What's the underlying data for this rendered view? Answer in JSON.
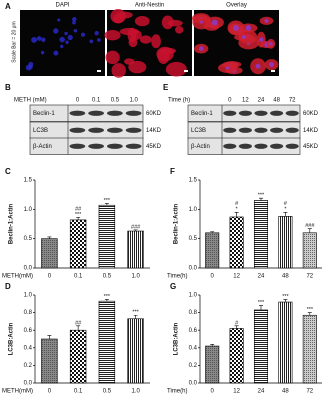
{
  "panel_a": {
    "label": "A",
    "scale_bar": "Scale Bar = 20 μm",
    "images": [
      "DAPI",
      "Anti-Nestin",
      "Overlay"
    ]
  },
  "panel_b": {
    "label": "B",
    "condition": "METH (mM)",
    "lanes": [
      "0",
      "0.1",
      "0.5",
      "1.0"
    ],
    "proteins": [
      "Beclin-1",
      "LC3B",
      "β-Actin"
    ],
    "sizes": [
      "60KD",
      "14KD",
      "45KD"
    ]
  },
  "panel_e": {
    "label": "E",
    "condition": "Time (h)",
    "lanes": [
      "0",
      "12",
      "24",
      "48",
      "72"
    ],
    "proteins": [
      "Beclin-1",
      "LC3B",
      "β-Actin"
    ],
    "sizes": [
      "60KD",
      "14KD",
      "45KD"
    ]
  },
  "chart_data": [
    {
      "type": "bar",
      "panel": "C",
      "y_label": "Beclin-1:Actin",
      "x_label": "METH(mM)",
      "categories": [
        "0",
        "0.1",
        "0.5",
        "1.0"
      ],
      "values": [
        0.5,
        0.82,
        1.07,
        0.63
      ],
      "errors": [
        0.03,
        0.04,
        0.03,
        0.02
      ],
      "annotations": [
        [],
        [
          "##",
          "***"
        ],
        [
          "***"
        ],
        [
          "###"
        ]
      ],
      "ylim": [
        0,
        1.5
      ],
      "yticks": [
        {
          "value": 0,
          "label": "0.0"
        },
        0.5,
        {
          "value": 1,
          "label": "1.0"
        },
        1.5
      ]
    },
    {
      "type": "bar",
      "panel": "D",
      "y_label": "LC3B:Actin",
      "x_label": "METH(mM)",
      "categories": [
        "0",
        "0.1",
        "0.5",
        "1.0"
      ],
      "values": [
        0.5,
        0.6,
        0.93,
        0.73
      ],
      "errors": [
        0.04,
        0.05,
        0.02,
        0.04
      ],
      "annotations": [
        [],
        [
          "##"
        ],
        [
          "***"
        ],
        [
          "***"
        ]
      ],
      "ylim": [
        0,
        1.0
      ],
      "yticks": [
        {
          "value": 0,
          "label": "0.0"
        },
        0.2,
        0.4,
        0.6,
        0.8,
        {
          "value": 1,
          "label": "1.0"
        }
      ]
    },
    {
      "type": "bar",
      "panel": "F",
      "y_label": "Beclin-1:Actin",
      "x_label": "Time(h)",
      "categories": [
        "0",
        "12",
        "24",
        "48",
        "72"
      ],
      "values": [
        0.6,
        0.87,
        1.15,
        0.88,
        0.6
      ],
      "errors": [
        0.02,
        0.08,
        0.04,
        0.07,
        0.07
      ],
      "annotations": [
        [],
        [
          "#",
          "*"
        ],
        [
          "***"
        ],
        [
          "#",
          "*"
        ],
        [
          "###"
        ]
      ],
      "ylim": [
        0,
        1.5
      ],
      "yticks": [
        {
          "value": 0,
          "label": "0.0"
        },
        0.5,
        {
          "value": 1,
          "label": "1.0"
        },
        1.5
      ]
    },
    {
      "type": "bar",
      "panel": "G",
      "y_label": "LC3B:Actin",
      "x_label": "Time(h)",
      "categories": [
        "0",
        "12",
        "24",
        "48",
        "72"
      ],
      "values": [
        0.42,
        0.62,
        0.83,
        0.92,
        0.77
      ],
      "errors": [
        0.02,
        0.03,
        0.05,
        0.03,
        0.03
      ],
      "annotations": [
        [],
        [
          "#"
        ],
        [
          "***"
        ],
        [
          "***"
        ],
        [
          "***"
        ]
      ],
      "ylim": [
        0,
        1.0
      ],
      "yticks": [
        {
          "value": 0,
          "label": "0.0"
        },
        0.2,
        0.4,
        0.6,
        0.8,
        {
          "value": 1,
          "label": "1.0"
        }
      ]
    }
  ]
}
